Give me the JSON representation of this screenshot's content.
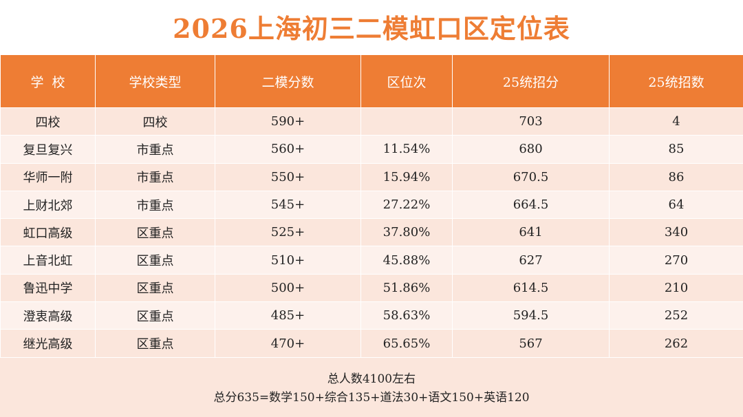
{
  "title": "2026上海初三二模虹口区定位表",
  "columns": [
    "学  校",
    "学校类型",
    "二模分数",
    "区位次",
    "25统招分",
    "25统招数"
  ],
  "rows": [
    [
      "四校",
      "四校",
      "590+",
      "",
      "703",
      "4"
    ],
    [
      "复旦复兴",
      "市重点",
      "560+",
      "11.54%",
      "680",
      "85"
    ],
    [
      "华师一附",
      "市重点",
      "550+",
      "15.94%",
      "670.5",
      "86"
    ],
    [
      "上财北郊",
      "市重点",
      "545+",
      "27.22%",
      "664.5",
      "64"
    ],
    [
      "虹口高级",
      "区重点",
      "525+",
      "37.80%",
      "641",
      "340"
    ],
    [
      "上音北虹",
      "区重点",
      "510+",
      "45.88%",
      "627",
      "270"
    ],
    [
      "鲁迅中学",
      "区重点",
      "500+",
      "51.86%",
      "614.5",
      "210"
    ],
    [
      "澄衷高级",
      "区重点",
      "485+",
      "58.63%",
      "594.5",
      "252"
    ],
    [
      "继光高级",
      "区重点",
      "470+",
      "65.65%",
      "567",
      "262"
    ]
  ],
  "footer": {
    "line1": "总人数4100左右",
    "line2": "总分635=数学150+综合135+道法30+语文150+英语120"
  },
  "colors": {
    "accent": "#ee7d34",
    "row_odd": "#fbe6dc",
    "row_even": "#fdf1ec"
  }
}
